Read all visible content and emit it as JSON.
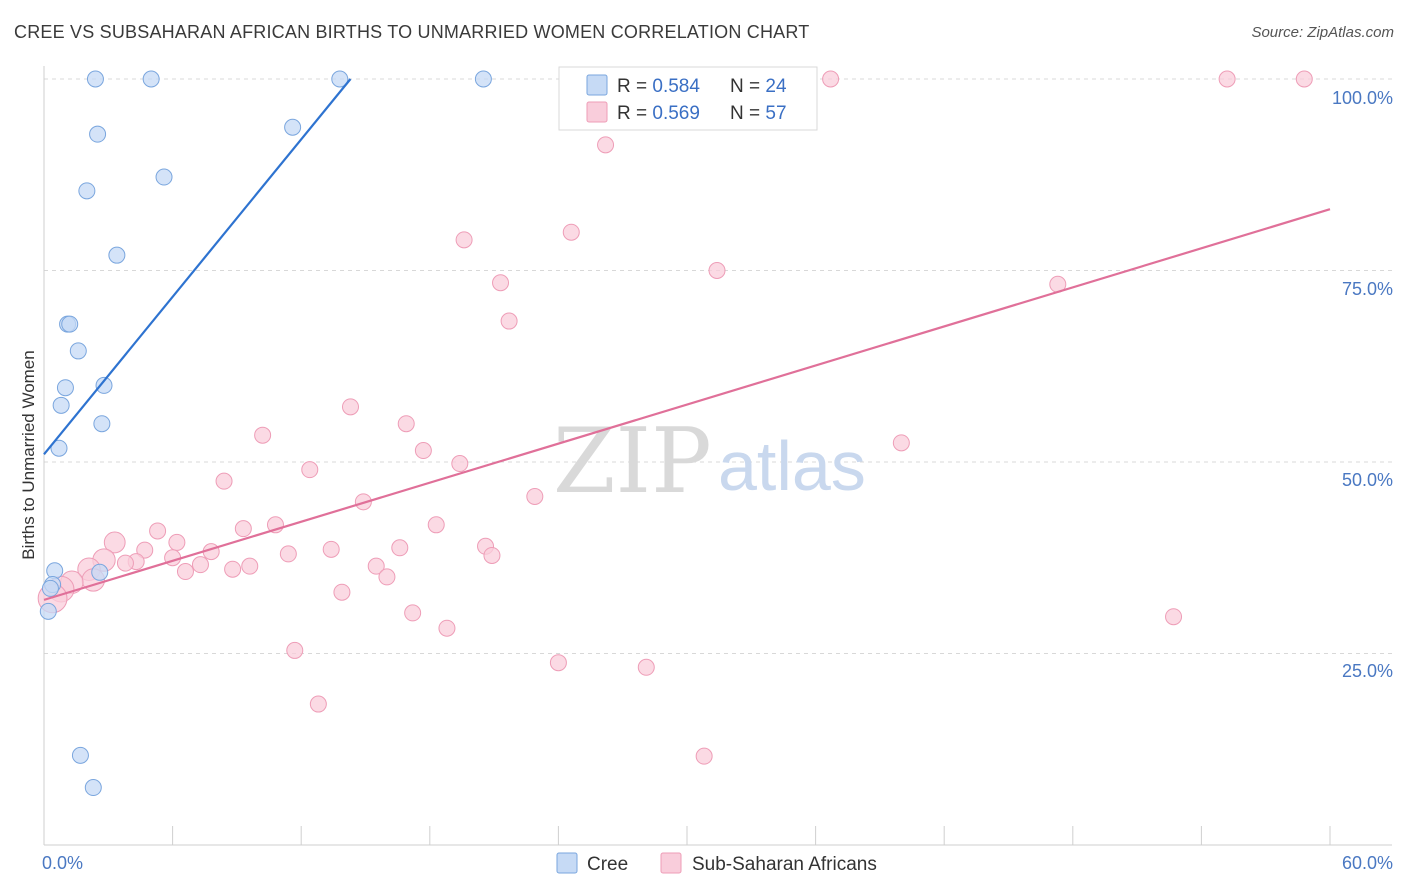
{
  "title": "CREE VS SUBSAHARAN AFRICAN BIRTHS TO UNMARRIED WOMEN CORRELATION CHART",
  "source": "Source: ZipAtlas.com",
  "watermark": {
    "zip": "ZIP",
    "atlas": "atlas"
  },
  "colors": {
    "cree_fill": "#c6daf5",
    "cree_stroke": "#7aa6de",
    "cree_line": "#2e73d0",
    "ssa_fill": "#f9cddb",
    "ssa_stroke": "#ee9db7",
    "ssa_line": "#e07099",
    "axis_label": "#4a78c2",
    "grid": "#d8d8d8"
  },
  "legend": {
    "rows": [
      {
        "r_label": "R = ",
        "r_value": "0.584",
        "n_label": "N = ",
        "n_value": "24"
      },
      {
        "r_label": "R = ",
        "r_value": "0.569",
        "n_label": "N = ",
        "n_value": "57"
      }
    ]
  },
  "bottom_legend": [
    "Cree",
    "Sub-Saharan Africans"
  ],
  "chart_data": {
    "type": "scatter",
    "title": "CREE VS SUBSAHARAN AFRICAN BIRTHS TO UNMARRIED WOMEN CORRELATION CHART",
    "xlabel": "",
    "ylabel": "Births to Unmarried Women",
    "xlim": [
      0,
      60
    ],
    "ylim": [
      0,
      100
    ],
    "x_tick_labels": [
      "0.0%",
      "60.0%"
    ],
    "x_tick_values": [
      0,
      6,
      12,
      18,
      24,
      30,
      36,
      42,
      48,
      54,
      60
    ],
    "y_tick_labels": [
      "25.0%",
      "50.0%",
      "75.0%",
      "100.0%"
    ],
    "y_tick_values": [
      25,
      50,
      75,
      100
    ],
    "grid": true,
    "legend_position": "top-center",
    "series": [
      {
        "name": "Cree",
        "r": 0.584,
        "n": 24,
        "trend": {
          "x": [
            0.0,
            14.3
          ],
          "y": [
            51.0,
            100.0
          ]
        },
        "points": [
          {
            "x": 2.4,
            "y": 100.0,
            "s": 1
          },
          {
            "x": 5.0,
            "y": 100.0,
            "s": 1
          },
          {
            "x": 13.8,
            "y": 100.0,
            "s": 1
          },
          {
            "x": 20.5,
            "y": 100.0,
            "s": 1
          },
          {
            "x": 2.5,
            "y": 92.8,
            "s": 1
          },
          {
            "x": 11.6,
            "y": 93.7,
            "s": 1
          },
          {
            "x": 5.6,
            "y": 87.2,
            "s": 1
          },
          {
            "x": 2.0,
            "y": 85.4,
            "s": 1
          },
          {
            "x": 3.4,
            "y": 77.0,
            "s": 1
          },
          {
            "x": 1.1,
            "y": 68.0,
            "s": 1
          },
          {
            "x": 1.2,
            "y": 68.0,
            "s": 1
          },
          {
            "x": 1.6,
            "y": 64.5,
            "s": 1
          },
          {
            "x": 1.0,
            "y": 59.7,
            "s": 1
          },
          {
            "x": 2.8,
            "y": 60.0,
            "s": 1
          },
          {
            "x": 0.8,
            "y": 57.4,
            "s": 1
          },
          {
            "x": 2.7,
            "y": 55.0,
            "s": 1
          },
          {
            "x": 0.7,
            "y": 51.8,
            "s": 1
          },
          {
            "x": 0.5,
            "y": 35.8,
            "s": 1
          },
          {
            "x": 0.4,
            "y": 34.0,
            "s": 1
          },
          {
            "x": 2.6,
            "y": 35.6,
            "s": 1
          },
          {
            "x": 0.3,
            "y": 33.5,
            "s": 1
          },
          {
            "x": 0.2,
            "y": 30.5,
            "s": 1
          },
          {
            "x": 1.7,
            "y": 11.7,
            "s": 1
          },
          {
            "x": 2.3,
            "y": 7.5,
            "s": 1
          }
        ]
      },
      {
        "name": "Sub-Saharan Africans",
        "r": 0.569,
        "n": 57,
        "trend": {
          "x": [
            0.0,
            60.0
          ],
          "y": [
            32.0,
            83.0
          ]
        },
        "points": [
          {
            "x": 36.7,
            "y": 100.0,
            "s": 1
          },
          {
            "x": 55.2,
            "y": 100.0,
            "s": 1
          },
          {
            "x": 58.8,
            "y": 100.0,
            "s": 1
          },
          {
            "x": 26.2,
            "y": 91.4,
            "s": 1
          },
          {
            "x": 24.6,
            "y": 80.0,
            "s": 1
          },
          {
            "x": 19.6,
            "y": 79.0,
            "s": 1
          },
          {
            "x": 31.4,
            "y": 75.0,
            "s": 1
          },
          {
            "x": 21.3,
            "y": 73.4,
            "s": 1
          },
          {
            "x": 47.3,
            "y": 73.2,
            "s": 1
          },
          {
            "x": 21.7,
            "y": 68.4,
            "s": 1
          },
          {
            "x": 14.3,
            "y": 57.2,
            "s": 1
          },
          {
            "x": 16.9,
            "y": 55.0,
            "s": 1
          },
          {
            "x": 10.2,
            "y": 53.5,
            "s": 1
          },
          {
            "x": 40.0,
            "y": 52.5,
            "s": 1
          },
          {
            "x": 17.7,
            "y": 51.5,
            "s": 1
          },
          {
            "x": 19.4,
            "y": 49.8,
            "s": 1
          },
          {
            "x": 12.4,
            "y": 49.0,
            "s": 1
          },
          {
            "x": 8.4,
            "y": 47.5,
            "s": 1
          },
          {
            "x": 22.9,
            "y": 45.5,
            "s": 1
          },
          {
            "x": 14.9,
            "y": 44.8,
            "s": 1
          },
          {
            "x": 10.8,
            "y": 41.8,
            "s": 1
          },
          {
            "x": 18.3,
            "y": 41.8,
            "s": 1
          },
          {
            "x": 9.3,
            "y": 41.3,
            "s": 1
          },
          {
            "x": 5.3,
            "y": 41.0,
            "s": 1
          },
          {
            "x": 3.3,
            "y": 39.5,
            "s": 1.3
          },
          {
            "x": 6.2,
            "y": 39.5,
            "s": 1
          },
          {
            "x": 20.6,
            "y": 39.0,
            "s": 1
          },
          {
            "x": 16.6,
            "y": 38.8,
            "s": 1
          },
          {
            "x": 13.4,
            "y": 38.6,
            "s": 1
          },
          {
            "x": 4.7,
            "y": 38.5,
            "s": 1
          },
          {
            "x": 7.8,
            "y": 38.3,
            "s": 1
          },
          {
            "x": 11.4,
            "y": 38.0,
            "s": 1
          },
          {
            "x": 20.9,
            "y": 37.8,
            "s": 1
          },
          {
            "x": 6.0,
            "y": 37.5,
            "s": 1
          },
          {
            "x": 2.8,
            "y": 37.2,
            "s": 1.4
          },
          {
            "x": 4.3,
            "y": 37.0,
            "s": 1
          },
          {
            "x": 3.8,
            "y": 36.8,
            "s": 1
          },
          {
            "x": 7.3,
            "y": 36.6,
            "s": 1
          },
          {
            "x": 9.6,
            "y": 36.4,
            "s": 1
          },
          {
            "x": 15.5,
            "y": 36.4,
            "s": 1
          },
          {
            "x": 2.1,
            "y": 36.0,
            "s": 1.4
          },
          {
            "x": 8.8,
            "y": 36.0,
            "s": 1
          },
          {
            "x": 6.6,
            "y": 35.7,
            "s": 1
          },
          {
            "x": 16.0,
            "y": 35.0,
            "s": 1
          },
          {
            "x": 2.3,
            "y": 34.6,
            "s": 1.4
          },
          {
            "x": 1.3,
            "y": 34.3,
            "s": 1.4
          },
          {
            "x": 0.8,
            "y": 33.4,
            "s": 1.6
          },
          {
            "x": 0.4,
            "y": 32.2,
            "s": 1.8
          },
          {
            "x": 13.9,
            "y": 33.0,
            "s": 1
          },
          {
            "x": 17.2,
            "y": 30.3,
            "s": 1
          },
          {
            "x": 52.7,
            "y": 29.8,
            "s": 1
          },
          {
            "x": 18.8,
            "y": 28.3,
            "s": 1
          },
          {
            "x": 11.7,
            "y": 25.4,
            "s": 1
          },
          {
            "x": 24.0,
            "y": 23.8,
            "s": 1
          },
          {
            "x": 28.1,
            "y": 23.2,
            "s": 1
          },
          {
            "x": 12.8,
            "y": 18.4,
            "s": 1
          },
          {
            "x": 30.8,
            "y": 11.6,
            "s": 1
          }
        ]
      }
    ]
  }
}
